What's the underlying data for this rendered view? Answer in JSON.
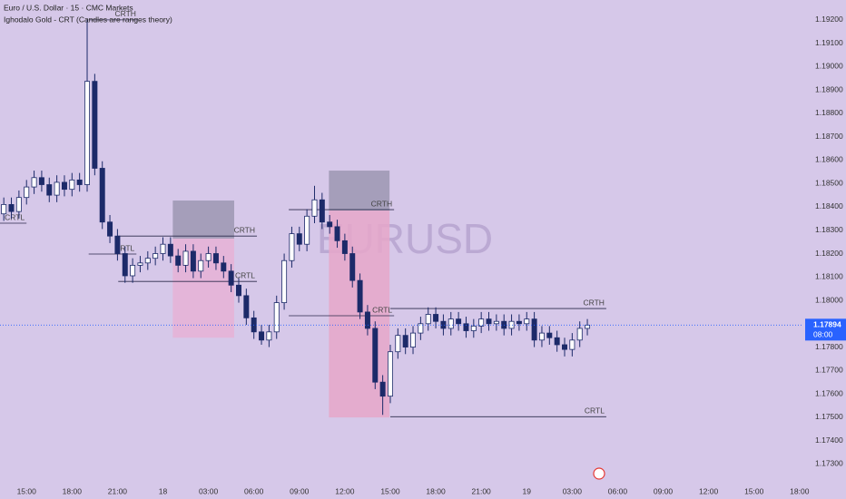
{
  "chart_data": {
    "type": "candlestick",
    "title": "Euro / U.S. Dollar · 15 · CMC Markets",
    "subtitle": "Ighodalo Gold - CRT (Candles are ranges theory)",
    "watermark": "EURUSD",
    "up_color": "#ffffff",
    "down_color": "#1c2a69",
    "grid": false,
    "xlim": [
      -0.5,
      105.5
    ],
    "xticks": [
      {
        "value": 3,
        "label": "15:00"
      },
      {
        "value": 9,
        "label": "18:00"
      },
      {
        "value": 15,
        "label": "21:00"
      },
      {
        "value": 21,
        "label": "18"
      },
      {
        "value": 27,
        "label": "03:00"
      },
      {
        "value": 33,
        "label": "06:00"
      },
      {
        "value": 39,
        "label": "09:00"
      },
      {
        "value": 45,
        "label": "12:00"
      },
      {
        "value": 51,
        "label": "15:00"
      },
      {
        "value": 57,
        "label": "18:00"
      },
      {
        "value": 63,
        "label": "21:00"
      },
      {
        "value": 69,
        "label": "19"
      },
      {
        "value": 75,
        "label": "03:00"
      },
      {
        "value": 81,
        "label": "06:00"
      },
      {
        "value": 87,
        "label": "09:00"
      },
      {
        "value": 93,
        "label": "12:00"
      },
      {
        "value": 99,
        "label": "15:00"
      },
      {
        "value": 105,
        "label": "18:00"
      }
    ],
    "ylim": [
      1.1715,
      1.19285
    ],
    "yticks": [
      {
        "value": 1.173,
        "label": "1.17300"
      },
      {
        "value": 1.174,
        "label": "1.17400"
      },
      {
        "value": 1.175,
        "label": "1.17500"
      },
      {
        "value": 1.176,
        "label": "1.17600"
      },
      {
        "value": 1.177,
        "label": "1.17700"
      },
      {
        "value": 1.178,
        "label": "1.17800"
      },
      {
        "value": 1.179,
        "label": "1.17900"
      },
      {
        "value": 1.18,
        "label": "1.18000"
      },
      {
        "value": 1.181,
        "label": "1.18100"
      },
      {
        "value": 1.182,
        "label": "1.18200"
      },
      {
        "value": 1.183,
        "label": "1.18300"
      },
      {
        "value": 1.184,
        "label": "1.18400"
      },
      {
        "value": 1.185,
        "label": "1.18500"
      },
      {
        "value": 1.186,
        "label": "1.18600"
      },
      {
        "value": 1.187,
        "label": "1.18700"
      },
      {
        "value": 1.188,
        "label": "1.18800"
      },
      {
        "value": 1.189,
        "label": "1.18900"
      },
      {
        "value": 1.19,
        "label": "1.19000"
      },
      {
        "value": 1.191,
        "label": "1.19100"
      },
      {
        "value": 1.192,
        "label": "1.19200"
      }
    ],
    "open": [
      1.1837,
      1.1841,
      1.1838,
      1.1844,
      1.18485,
      1.18525,
      1.18495,
      1.1845,
      1.18505,
      1.18475,
      1.18515,
      1.18495,
      1.18937,
      1.18565,
      1.18335,
      1.18275,
      1.182,
      1.18105,
      1.1815,
      1.1816,
      1.1818,
      1.182,
      1.1824,
      1.1819,
      1.1815,
      1.1821,
      1.18125,
      1.1817,
      1.182,
      1.1816,
      1.18125,
      1.18065,
      1.1802,
      1.17925,
      1.17865,
      1.1783,
      1.17865,
      1.1799,
      1.1817,
      1.18285,
      1.1824,
      1.1836,
      1.1843,
      1.18335,
      1.18315,
      1.18255,
      1.182,
      1.18085,
      1.1795,
      1.1788,
      1.1765,
      1.1759,
      1.1778,
      1.1785,
      1.178,
      1.1786,
      1.179,
      1.1794,
      1.1791,
      1.1788,
      1.1792,
      1.179,
      1.1787,
      1.1789,
      1.1792,
      1.179,
      1.1791,
      1.1788,
      1.1791,
      1.179,
      1.1792,
      1.1783,
      1.1786,
      1.1784,
      1.1781,
      1.1779,
      1.1783,
      1.1788
    ],
    "high": [
      1.1844,
      1.1844,
      1.1847,
      1.18515,
      1.18555,
      1.18555,
      1.18525,
      1.18535,
      1.18535,
      1.18545,
      1.18545,
      1.192,
      1.18969,
      1.18595,
      1.18365,
      1.18305,
      1.1823,
      1.1818,
      1.1819,
      1.1821,
      1.1823,
      1.1827,
      1.1827,
      1.1822,
      1.1824,
      1.1824,
      1.182,
      1.1823,
      1.1823,
      1.1819,
      1.18155,
      1.18095,
      1.1805,
      1.17955,
      1.17895,
      1.17895,
      1.1802,
      1.182,
      1.18315,
      1.18315,
      1.1839,
      1.1849,
      1.1846,
      1.18365,
      1.18345,
      1.18285,
      1.1823,
      1.18115,
      1.1798,
      1.1791,
      1.1768,
      1.1781,
      1.1788,
      1.1788,
      1.1789,
      1.1793,
      1.1797,
      1.1797,
      1.1794,
      1.1795,
      1.1795,
      1.1793,
      1.1792,
      1.1795,
      1.1795,
      1.1794,
      1.1794,
      1.1794,
      1.1794,
      1.1795,
      1.1795,
      1.1789,
      1.1789,
      1.1787,
      1.1784,
      1.1786,
      1.1791,
      1.1792
    ],
    "low": [
      1.1834,
      1.1835,
      1.1835,
      1.1841,
      1.18455,
      1.18465,
      1.1842,
      1.1842,
      1.18445,
      1.18445,
      1.18465,
      1.18465,
      1.18535,
      1.18305,
      1.18245,
      1.1817,
      1.18075,
      1.18075,
      1.1812,
      1.1813,
      1.1815,
      1.1817,
      1.1816,
      1.1812,
      1.1812,
      1.18095,
      1.18095,
      1.1814,
      1.1813,
      1.18095,
      1.18035,
      1.1799,
      1.17895,
      1.17835,
      1.1781,
      1.178,
      1.17835,
      1.1796,
      1.1814,
      1.1821,
      1.1821,
      1.1833,
      1.18305,
      1.18285,
      1.18225,
      1.1817,
      1.18055,
      1.1792,
      1.1785,
      1.1762,
      1.1751,
      1.1756,
      1.1775,
      1.1777,
      1.1777,
      1.1783,
      1.1787,
      1.1788,
      1.1785,
      1.1785,
      1.1787,
      1.1784,
      1.1784,
      1.1786,
      1.1787,
      1.1787,
      1.1785,
      1.1785,
      1.1787,
      1.1787,
      1.178,
      1.178,
      1.1781,
      1.1778,
      1.1776,
      1.1776,
      1.178,
      1.1785
    ],
    "close": [
      1.1841,
      1.1838,
      1.1844,
      1.18485,
      1.18525,
      1.18495,
      1.1845,
      1.18505,
      1.18475,
      1.18515,
      1.18495,
      1.18937,
      1.18565,
      1.18335,
      1.18275,
      1.182,
      1.18105,
      1.1815,
      1.1816,
      1.1818,
      1.182,
      1.1824,
      1.1819,
      1.1815,
      1.1821,
      1.18125,
      1.1817,
      1.182,
      1.1816,
      1.18125,
      1.18065,
      1.1802,
      1.17925,
      1.17865,
      1.1783,
      1.17865,
      1.1799,
      1.1817,
      1.18285,
      1.1824,
      1.1836,
      1.1843,
      1.18335,
      1.18315,
      1.18255,
      1.182,
      1.18085,
      1.1795,
      1.1788,
      1.1765,
      1.1759,
      1.1778,
      1.1785,
      1.178,
      1.1786,
      1.179,
      1.1794,
      1.1791,
      1.1788,
      1.1792,
      1.179,
      1.1787,
      1.1789,
      1.1792,
      1.179,
      1.1791,
      1.1788,
      1.1791,
      1.179,
      1.1792,
      1.1783,
      1.1786,
      1.1784,
      1.1781,
      1.1779,
      1.1783,
      1.1788,
      1.17894
    ],
    "zones": [
      {
        "x": [
          22.3,
          30.4
        ],
        "y": [
          1.18264,
          1.18427
        ],
        "color": "#9c96b2"
      },
      {
        "x": [
          22.3,
          30.4
        ],
        "y": [
          1.1784,
          1.18264
        ],
        "color": "#e6b2d6"
      },
      {
        "x": [
          42.9,
          50.9
        ],
        "y": [
          1.18384,
          1.18555
        ],
        "color": "#9c96b2"
      },
      {
        "x": [
          42.9,
          50.9
        ],
        "y": [
          1.17499,
          1.18384
        ],
        "color": "#e6a7c9"
      }
    ],
    "levels": [
      {
        "label": "CRTL",
        "value": 1.1833,
        "x": [
          -0.5,
          3.0
        ]
      },
      {
        "label": "CRTH",
        "value": 1.192,
        "x": [
          11.2,
          17.7
        ]
      },
      {
        "label": "CRTL",
        "value": 1.18198,
        "x": [
          11.2,
          17.5
        ]
      },
      {
        "label": "CRTH",
        "value": 1.18275,
        "x": [
          15.1,
          33.4
        ]
      },
      {
        "label": "CRTL",
        "value": 1.18081,
        "x": [
          15.1,
          33.4
        ]
      },
      {
        "label": "CRTH",
        "value": 1.18388,
        "x": [
          37.6,
          51.5
        ]
      },
      {
        "label": "CRTL",
        "value": 1.17934,
        "x": [
          37.6,
          51.5
        ]
      },
      {
        "label": "CRTH",
        "value": 1.17965,
        "x": [
          51.0,
          79.5
        ]
      },
      {
        "label": "CRTL",
        "value": 1.17502,
        "x": [
          51.0,
          79.5
        ]
      }
    ],
    "last_price": 1.17894,
    "countdown": "08:00"
  }
}
